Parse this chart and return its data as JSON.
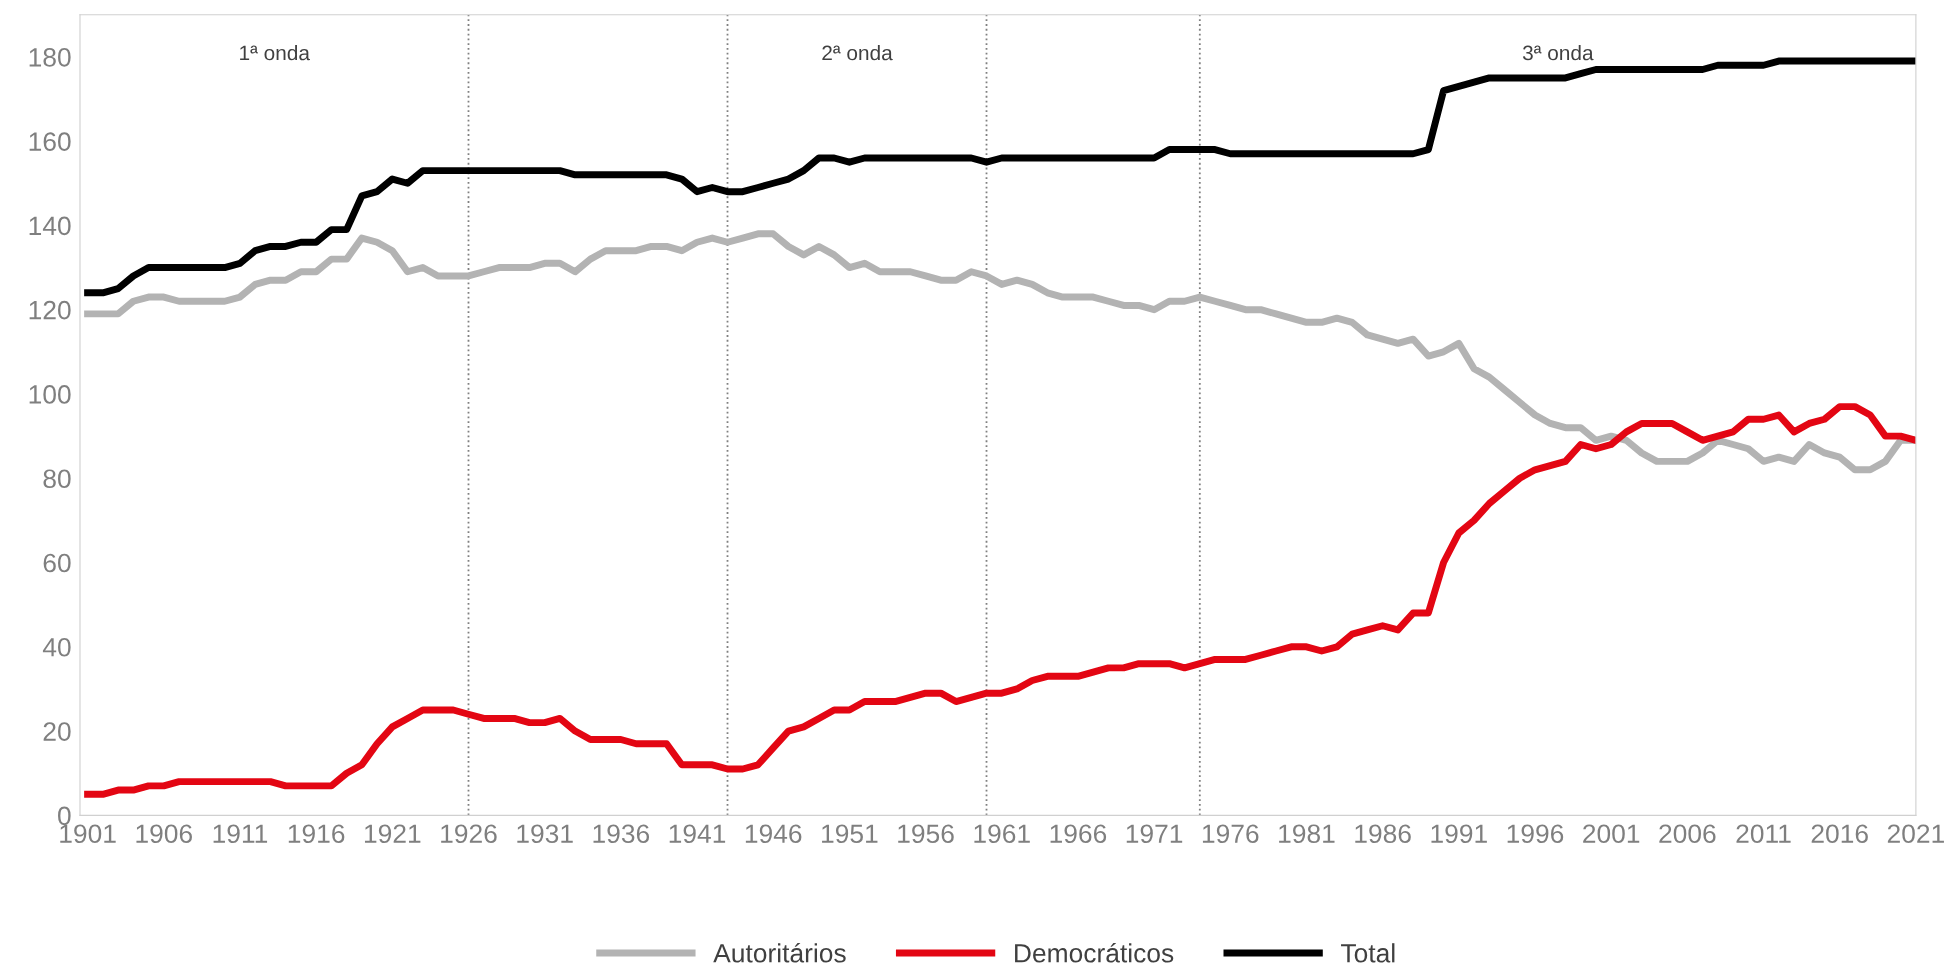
{
  "chart_data": {
    "type": "line",
    "x": [
      1901,
      1902,
      1903,
      1904,
      1905,
      1906,
      1907,
      1908,
      1909,
      1910,
      1911,
      1912,
      1913,
      1914,
      1915,
      1916,
      1917,
      1918,
      1919,
      1920,
      1921,
      1922,
      1923,
      1924,
      1925,
      1926,
      1927,
      1928,
      1929,
      1930,
      1931,
      1932,
      1933,
      1934,
      1935,
      1936,
      1937,
      1938,
      1939,
      1940,
      1941,
      1942,
      1943,
      1944,
      1945,
      1946,
      1947,
      1948,
      1949,
      1950,
      1951,
      1952,
      1953,
      1954,
      1955,
      1956,
      1957,
      1958,
      1959,
      1960,
      1961,
      1962,
      1963,
      1964,
      1965,
      1966,
      1967,
      1968,
      1969,
      1970,
      1971,
      1972,
      1973,
      1974,
      1975,
      1976,
      1977,
      1978,
      1979,
      1980,
      1981,
      1982,
      1983,
      1984,
      1985,
      1986,
      1987,
      1988,
      1989,
      1990,
      1991,
      1992,
      1993,
      1994,
      1995,
      1996,
      1997,
      1998,
      1999,
      2000,
      2001,
      2002,
      2003,
      2004,
      2005,
      2006,
      2007,
      2008,
      2009,
      2010,
      2011,
      2012,
      2013,
      2014,
      2015,
      2016,
      2017,
      2018,
      2019,
      2020,
      2021
    ],
    "series": [
      {
        "name": "Autoritários",
        "color": "#b3b3b3",
        "values": [
          119,
          119,
          119,
          122,
          123,
          123,
          122,
          122,
          122,
          122,
          123,
          126,
          127,
          127,
          129,
          129,
          132,
          132,
          137,
          136,
          134,
          129,
          130,
          128,
          128,
          128,
          129,
          130,
          130,
          130,
          131,
          131,
          129,
          132,
          134,
          134,
          134,
          135,
          135,
          134,
          136,
          137,
          136,
          137,
          138,
          138,
          135,
          133,
          135,
          133,
          130,
          131,
          129,
          129,
          129,
          128,
          127,
          127,
          129,
          128,
          126,
          127,
          126,
          124,
          123,
          123,
          123,
          122,
          121,
          121,
          120,
          122,
          122,
          123,
          122,
          121,
          120,
          120,
          119,
          118,
          117,
          117,
          118,
          117,
          114,
          113,
          112,
          113,
          109,
          110,
          112,
          106,
          104,
          101,
          98,
          95,
          93,
          92,
          92,
          89,
          90,
          89,
          86,
          84,
          84,
          84,
          86,
          89,
          88,
          87,
          84,
          85,
          84,
          88,
          86,
          85,
          82,
          82,
          84,
          89,
          89
        ]
      },
      {
        "name": "Democráticos",
        "color": "#e30613",
        "values": [
          5,
          5,
          6,
          6,
          7,
          7,
          8,
          8,
          8,
          8,
          8,
          8,
          8,
          7,
          7,
          7,
          7,
          10,
          12,
          17,
          21,
          23,
          25,
          25,
          25,
          24,
          23,
          23,
          23,
          22,
          22,
          23,
          20,
          18,
          18,
          18,
          17,
          17,
          17,
          12,
          12,
          12,
          11,
          11,
          12,
          16,
          20,
          21,
          23,
          25,
          25,
          27,
          27,
          27,
          28,
          29,
          29,
          27,
          28,
          29,
          29,
          30,
          32,
          33,
          33,
          33,
          34,
          35,
          35,
          36,
          36,
          36,
          35,
          36,
          37,
          37,
          37,
          38,
          39,
          40,
          40,
          39,
          40,
          43,
          44,
          45,
          44,
          48,
          48,
          60,
          67,
          70,
          74,
          77,
          80,
          82,
          83,
          84,
          88,
          87,
          88,
          91,
          93,
          93,
          93,
          91,
          89,
          90,
          91,
          94,
          94,
          95,
          91,
          93,
          94,
          97,
          97,
          95,
          90,
          90,
          89
        ]
      },
      {
        "name": "Total",
        "color": "#000000",
        "values": [
          124,
          124,
          125,
          128,
          130,
          130,
          130,
          130,
          130,
          130,
          131,
          134,
          135,
          135,
          136,
          136,
          139,
          139,
          147,
          148,
          151,
          150,
          153,
          153,
          153,
          153,
          153,
          153,
          153,
          153,
          153,
          153,
          152,
          152,
          152,
          152,
          152,
          152,
          152,
          151,
          148,
          149,
          148,
          148,
          149,
          150,
          151,
          153,
          156,
          156,
          155,
          156,
          156,
          156,
          156,
          156,
          156,
          156,
          156,
          155,
          156,
          156,
          156,
          156,
          156,
          156,
          156,
          156,
          156,
          156,
          156,
          158,
          158,
          158,
          158,
          157,
          157,
          157,
          157,
          157,
          157,
          157,
          157,
          157,
          157,
          157,
          157,
          157,
          158,
          172,
          173,
          174,
          175,
          175,
          175,
          175,
          175,
          175,
          176,
          177,
          177,
          177,
          177,
          177,
          177,
          177,
          177,
          178,
          178,
          178,
          178,
          179,
          179,
          179,
          179,
          179,
          179,
          179,
          179,
          179,
          179
        ]
      }
    ],
    "xlim": [
      1900.5,
      2021
    ],
    "xticks": [
      1901,
      1906,
      1911,
      1916,
      1921,
      1926,
      1931,
      1936,
      1941,
      1946,
      1951,
      1956,
      1961,
      1966,
      1971,
      1976,
      1981,
      1986,
      1991,
      1996,
      2001,
      2006,
      2011,
      2016,
      2021
    ],
    "ylim": [
      0,
      190
    ],
    "yticks": [
      0,
      20,
      40,
      60,
      80,
      100,
      120,
      140,
      160,
      180
    ],
    "ref_lines": [
      {
        "axis": "x",
        "value": 1926,
        "color": "#808080",
        "line_style": "dotted"
      },
      {
        "axis": "x",
        "value": 1943,
        "color": "#808080",
        "line_style": "dotted"
      },
      {
        "axis": "x",
        "value": 1960,
        "color": "#808080",
        "line_style": "dotted"
      },
      {
        "axis": "x",
        "value": 1974,
        "color": "#808080",
        "line_style": "dotted"
      }
    ],
    "annotations": [
      "1ª onda",
      "2ª onda",
      "3ª onda"
    ],
    "grid": false,
    "legend": "bottom",
    "marker": "none",
    "line_style": "solid"
  }
}
